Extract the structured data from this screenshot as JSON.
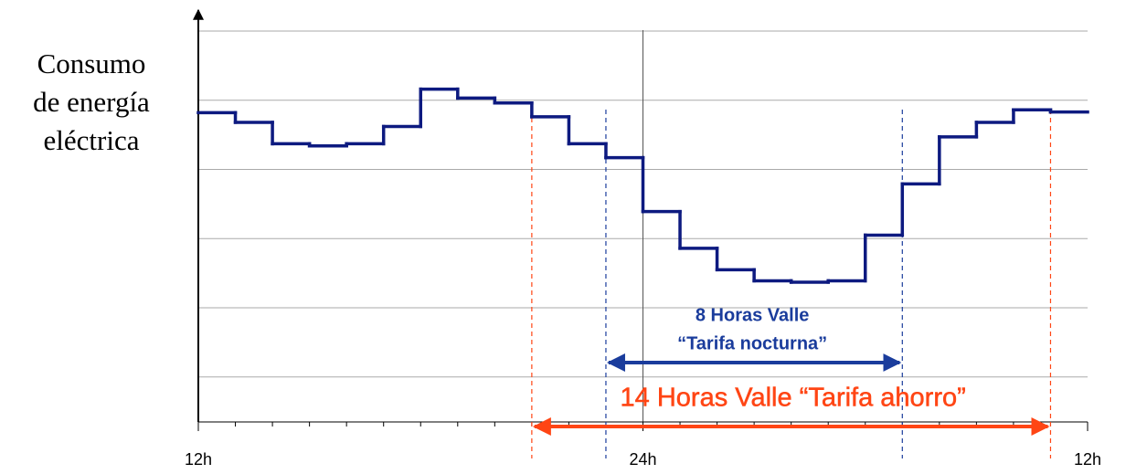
{
  "chart_data": {
    "type": "step",
    "y_label_lines": [
      "Consumo",
      "de energía",
      "eléctrica"
    ],
    "x": [
      0,
      1,
      2,
      3,
      4,
      5,
      6,
      7,
      8,
      9,
      10,
      11,
      12,
      13,
      14,
      15,
      16,
      17,
      18,
      19,
      20,
      21,
      22,
      23
    ],
    "series": [
      {
        "color": "#0d1a80",
        "values": [
          4.82,
          4.68,
          4.37,
          4.34,
          4.37,
          4.62,
          5.16,
          5.03,
          4.96,
          4.76,
          4.37,
          4.17,
          3.39,
          2.86,
          2.55,
          2.39,
          2.37,
          2.39,
          3.05,
          3.79,
          4.47,
          4.68,
          4.86,
          4.83
        ]
      }
    ],
    "xlim": [
      0,
      24
    ],
    "xticks": [
      {
        "value": 0,
        "label": "12h"
      },
      {
        "value": 12,
        "label": "24h"
      },
      {
        "value": 24,
        "label": "12h"
      }
    ],
    "ylim": [
      0.35,
      6.25
    ],
    "ygrid": [
      1,
      2,
      3,
      4,
      5,
      6
    ],
    "periods": [
      {
        "label_lines": [
          "8 Horas Valle",
          "“Tarifa nocturna”"
        ],
        "start": 11,
        "end": 19,
        "color": "#1a3c9c"
      },
      {
        "label_lines": [
          "14 Horas Valle “Tarifa ahorro”"
        ],
        "start": 9,
        "end": 23,
        "color": "#ff4514"
      }
    ]
  }
}
